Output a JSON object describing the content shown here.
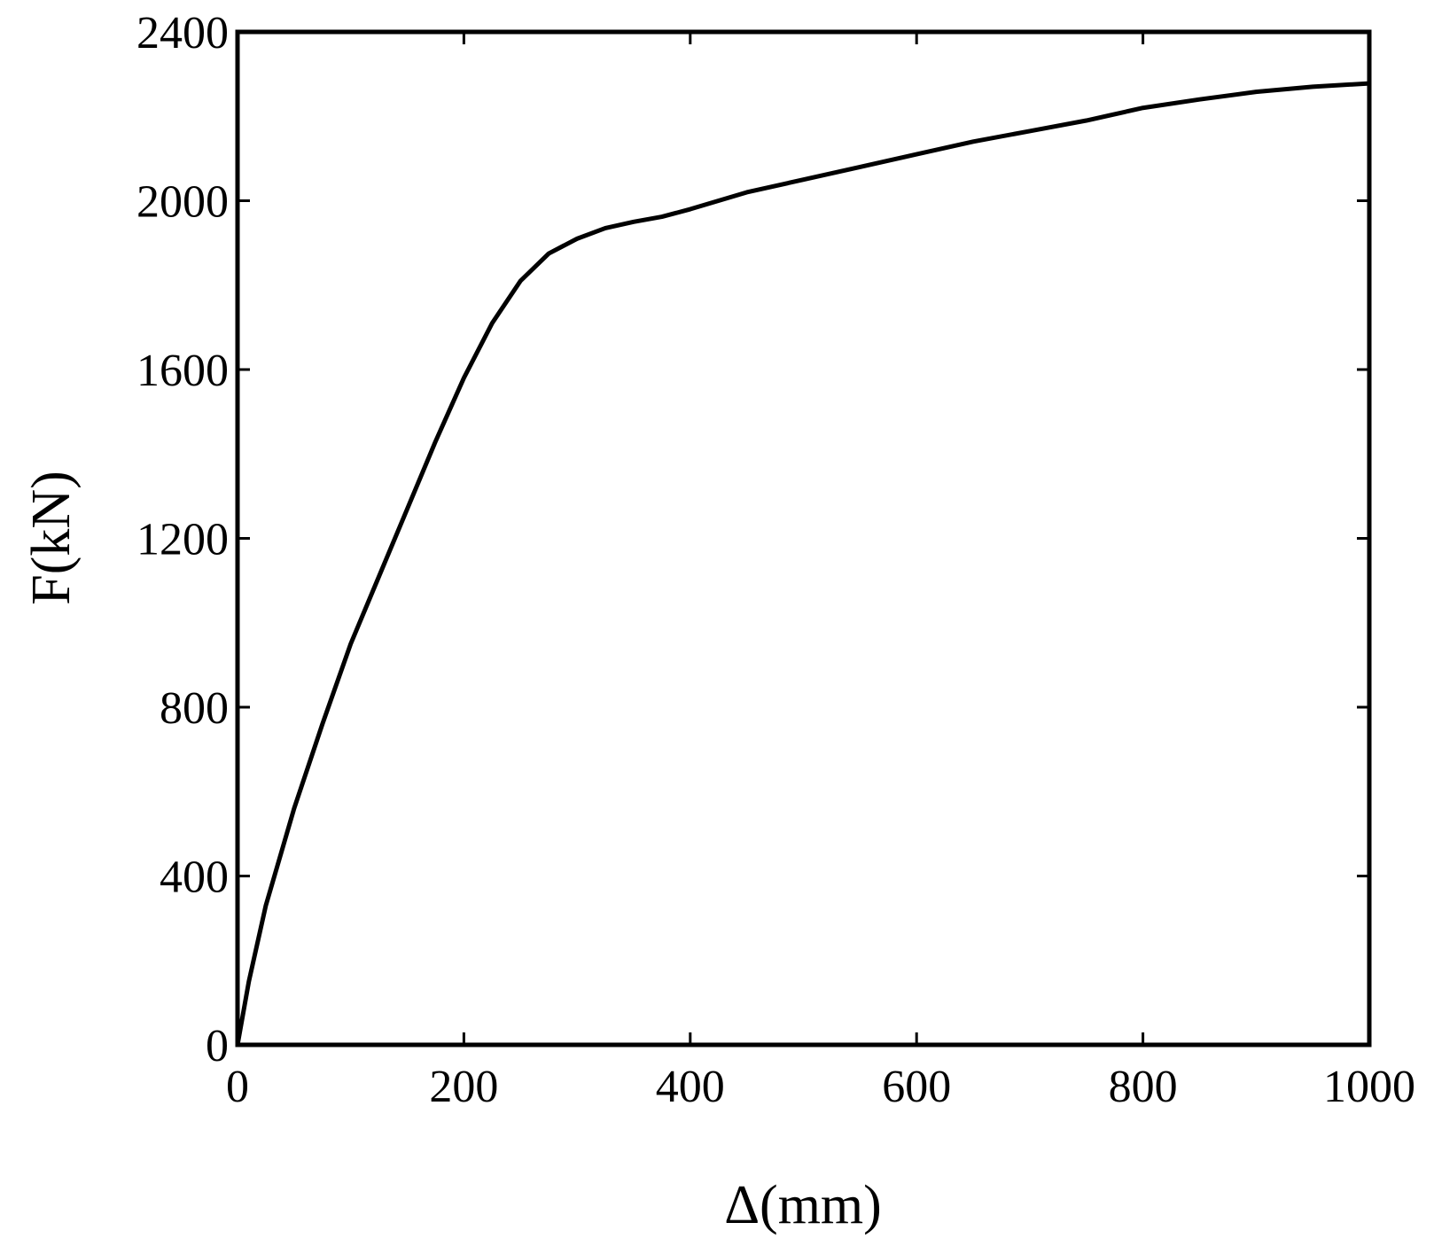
{
  "chart_data": {
    "type": "line",
    "x_label": "Δ(mm)",
    "y_label": "F(kN)",
    "x": [
      0,
      10,
      25,
      50,
      75,
      100,
      125,
      150,
      175,
      200,
      225,
      250,
      275,
      300,
      325,
      350,
      375,
      400,
      450,
      500,
      550,
      600,
      650,
      700,
      750,
      800,
      850,
      900,
      950,
      1000
    ],
    "series": [
      {
        "color": "#000000",
        "values": [
          0,
          150,
          330,
          560,
          760,
          950,
          1110,
          1270,
          1430,
          1580,
          1710,
          1810,
          1875,
          1910,
          1935,
          1950,
          1962,
          1980,
          2020,
          2050,
          2080,
          2110,
          2140,
          2165,
          2190,
          2220,
          2240,
          2258,
          2270,
          2278
        ]
      }
    ],
    "xlim": [
      0,
      1000
    ],
    "xticks": [
      0,
      200,
      400,
      600,
      800,
      1000
    ],
    "ylim": [
      0,
      2400
    ],
    "yticks": [
      0,
      400,
      800,
      1200,
      1600,
      2000,
      2400
    ],
    "grid": false
  }
}
